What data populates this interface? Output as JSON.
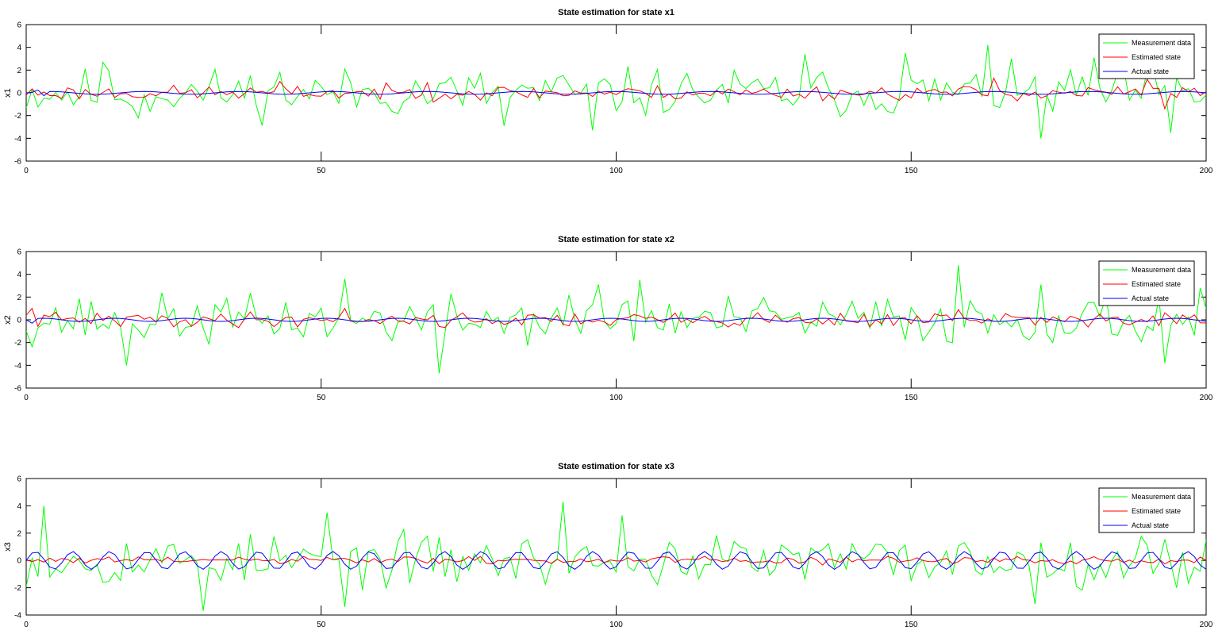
{
  "chart_data": [
    {
      "type": "line",
      "title": "State estimation for state x1",
      "xlabel": "",
      "ylabel": "x1",
      "xlim": [
        0,
        200
      ],
      "ylim": [
        -6,
        6
      ],
      "xticks": [
        0,
        50,
        100,
        150,
        200
      ],
      "yticks": [
        -6,
        -4,
        -2,
        0,
        2,
        4,
        6
      ],
      "grid": false,
      "legend": "top-right",
      "series": [
        {
          "name": "Measurement data",
          "color": "#00ff00",
          "amp": 1.5,
          "seed": 11,
          "spikes": [
            [
              13,
              2.7
            ],
            [
              19,
              -2.2
            ],
            [
              43,
              1.8
            ],
            [
              81,
              -2.9
            ],
            [
              96,
              -3.3
            ],
            [
              132,
              3.4
            ],
            [
              149,
              3.5
            ],
            [
              163,
              4.2
            ],
            [
              172,
              -4.0
            ],
            [
              181,
              3.1
            ],
            [
              191,
              2.2
            ],
            [
              194,
              -3.5
            ]
          ]
        },
        {
          "name": "Estimated state",
          "color": "#ff0000",
          "amp": 0.45,
          "seed": 23,
          "spikes": [
            [
              43,
              1.0
            ],
            [
              68,
              0.9
            ],
            [
              164,
              1.3
            ],
            [
              190,
              1.2
            ],
            [
              193,
              -1.4
            ]
          ]
        },
        {
          "name": "Actual state",
          "color": "#0000ff",
          "amp": 0.12,
          "period": 16,
          "spikes": [
            [
              2,
              0.25
            ],
            [
              3,
              -0.25
            ]
          ]
        }
      ]
    },
    {
      "type": "line",
      "title": "State estimation for state x2",
      "xlabel": "",
      "ylabel": "x2",
      "xlim": [
        0,
        200
      ],
      "ylim": [
        -6,
        6
      ],
      "xticks": [
        0,
        50,
        100,
        150,
        200
      ],
      "yticks": [
        -6,
        -4,
        -2,
        0,
        2,
        4,
        6
      ],
      "grid": false,
      "legend": "top-right",
      "series": [
        {
          "name": "Measurement data",
          "color": "#00ff00",
          "amp": 1.5,
          "seed": 37,
          "spikes": [
            [
              17,
              -4.0
            ],
            [
              54,
              3.6
            ],
            [
              70,
              -4.7
            ],
            [
              97,
              3.1
            ],
            [
              104,
              3.5
            ],
            [
              158,
              4.8
            ],
            [
              172,
              3.1
            ],
            [
              193,
              -3.8
            ],
            [
              199,
              2.8
            ]
          ]
        },
        {
          "name": "Estimated state",
          "color": "#ff0000",
          "amp": 0.45,
          "seed": 41,
          "spikes": [
            [
              1,
              1.0
            ],
            [
              54,
              1.0
            ],
            [
              158,
              0.9
            ]
          ]
        },
        {
          "name": "Actual state",
          "color": "#0000ff",
          "amp": 0.14,
          "period": 12,
          "spikes": [
            [
              1,
              -0.3
            ]
          ]
        }
      ]
    },
    {
      "type": "line",
      "title": "State estimation for state x3",
      "xlabel": "",
      "ylabel": "x3",
      "xlim": [
        0,
        200
      ],
      "ylim": [
        -4,
        6
      ],
      "xticks": [
        0,
        50,
        100,
        150,
        200
      ],
      "yticks": [
        -4,
        -2,
        0,
        2,
        4,
        6
      ],
      "grid": false,
      "legend": "top-right",
      "series": [
        {
          "name": "Measurement data",
          "color": "#00ff00",
          "amp": 1.3,
          "seed": 53,
          "spikes": [
            [
              3,
              4.0
            ],
            [
              30,
              -3.7
            ],
            [
              51,
              3.5
            ],
            [
              54,
              -3.4
            ],
            [
              91,
              4.3
            ],
            [
              101,
              3.3
            ],
            [
              171,
              -3.2
            ],
            [
              195,
              -2.0
            ]
          ]
        },
        {
          "name": "Estimated state",
          "color": "#ff0000",
          "amp": 0.2,
          "seed": 61,
          "spikes": []
        },
        {
          "name": "Actual state",
          "color": "#0000ff",
          "amp": 0.65,
          "period": 6.3,
          "spikes": []
        }
      ]
    }
  ]
}
